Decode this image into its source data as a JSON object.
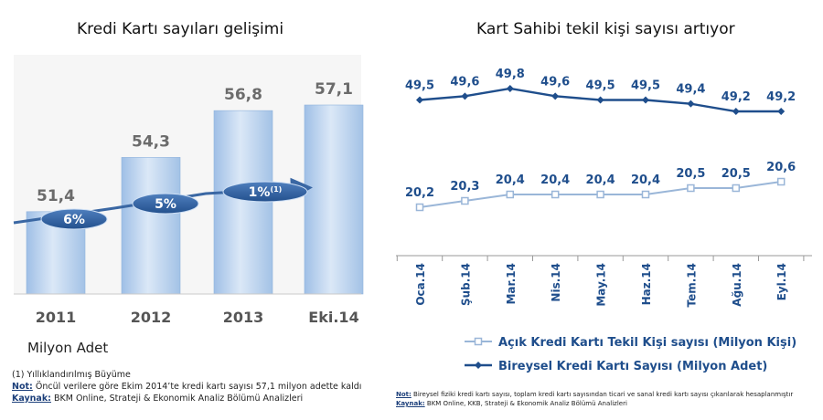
{
  "left_title": "Kredi Kartı sayıları gelişimi",
  "right_title": "Kart Sahibi tekil kişi sayısı artıyor",
  "unit_label": "Milyon Adet",
  "growth_labels": [
    {
      "value": "6%",
      "sup": ""
    },
    {
      "value": "5%",
      "sup": ""
    },
    {
      "value": "1%",
      "sup": "(1)"
    }
  ],
  "notes_left": {
    "footnote": "(1) Yıllıklandırılmış Büyüme",
    "not_label": "Not:",
    "not_text": " Öncül verilere göre Ekim 2014’te kredi kartı sayısı 57,1 milyon adette kaldı",
    "kaynak_label": "Kaynak:",
    "kaynak_text": " BKM Online, Strateji & Ekonomik Analiz Bölümü Analizleri"
  },
  "notes_right": {
    "not_label": "Not:",
    "not_text": " Bireysel fiziki kredi kartı sayısı, toplam kredi kartı sayısından ticari ve sanal kredi kartı sayısı çıkarılarak hesaplanmıştır",
    "kaynak_label": "Kaynak:",
    "kaynak_text": " BKM Online, KKB, Strateji & Ekonomik Analiz Bölümü Analizleri"
  },
  "colors": {
    "bar_light": "#d8e6f6",
    "bar_dark": "#a9c6e8",
    "bar_label": "#6b6b6b",
    "arrow": "#3a67a3",
    "ellipse": "#2f5d98",
    "series_light": "#9ab6d8",
    "series_dark": "#1f4e8c",
    "axis_label": "#1f4e8c"
  },
  "chart_data": [
    {
      "type": "bar",
      "categories": [
        "2011",
        "2012",
        "2013",
        "Eki.14"
      ],
      "values": [
        51.4,
        54.3,
        56.8,
        57.1
      ],
      "value_labels": [
        "51,4",
        "54,3",
        "56,8",
        "57,1"
      ],
      "title": "Kredi Kartı sayıları gelişimi",
      "ylabel": "Milyon Adet",
      "axis_break": true,
      "ylim": [
        0,
        60
      ],
      "grid": false
    },
    {
      "type": "line",
      "title": "Kart Sahibi tekil kişi sayısı artıyor",
      "categories": [
        "Oca.14",
        "Şub.14",
        "Mar.14",
        "Nis.14",
        "May.14",
        "Haz.14",
        "Tem.14",
        "Ağu.14",
        "Eyl.14"
      ],
      "series": [
        {
          "name": "Bireysel Kredi Kartı Sayısı (Milyon Adet)",
          "values": [
            49.5,
            49.6,
            49.8,
            49.6,
            49.5,
            49.5,
            49.4,
            49.2,
            49.2
          ],
          "labels": [
            "49,5",
            "49,6",
            "49,8",
            "49,6",
            "49,5",
            "49,5",
            "49,4",
            "49,2",
            "49,2"
          ]
        },
        {
          "name": "Açık Kredi Kartı Tekil Kişi sayısı (Milyon Kişi)",
          "values": [
            20.2,
            20.3,
            20.4,
            20.4,
            20.4,
            20.4,
            20.5,
            20.5,
            20.6
          ],
          "labels": [
            "20,2",
            "20,3",
            "20,4",
            "20,4",
            "20,4",
            "20,4",
            "20,5",
            "20,5",
            "20,6"
          ]
        }
      ],
      "legend": [
        "Açık Kredi Kartı Tekil Kişi sayısı (Milyon Kişi)",
        "Bireysel Kredi Kartı Sayısı (Milyon Adet)"
      ],
      "legend_position": "bottom",
      "grid": false
    }
  ]
}
